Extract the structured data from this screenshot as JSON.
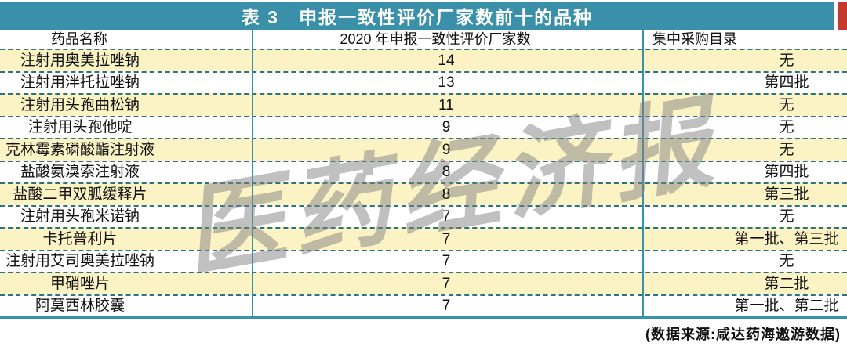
{
  "title": "表 3　申报一致性评价厂家数前十的品种",
  "watermark": "医药经济报",
  "source_note": "(数据来源:咸达药海遨游数据)",
  "colors": {
    "header_bar": "#3A8FA9",
    "row_highlight": "#FBF3C4",
    "dashed_separator": "#2C7380",
    "edge_strip": "#C53A2E"
  },
  "table": {
    "columns": [
      "药品名称",
      "2020 年申报一致性评价厂家数",
      "集中采购目录"
    ],
    "rows": [
      {
        "name": "注射用奥美拉唑钠",
        "count": "14",
        "catalog": "无"
      },
      {
        "name": "注射用泮托拉唑钠",
        "count": "13",
        "catalog": "第四批"
      },
      {
        "name": "注射用头孢曲松钠",
        "count": "11",
        "catalog": "无"
      },
      {
        "name": "注射用头孢他啶",
        "count": "9",
        "catalog": "无"
      },
      {
        "name": "克林霉素磷酸酯注射液",
        "count": "9",
        "catalog": "无"
      },
      {
        "name": "盐酸氨溴索注射液",
        "count": "8",
        "catalog": "第四批"
      },
      {
        "name": "盐酸二甲双胍缓释片",
        "count": "8",
        "catalog": "第三批"
      },
      {
        "name": "注射用头孢米诺钠",
        "count": "7",
        "catalog": "无"
      },
      {
        "name": "卡托普利片",
        "count": "7",
        "catalog": "第一批、第三批"
      },
      {
        "name": "注射用艾司奥美拉唑钠",
        "count": "7",
        "catalog": "无"
      },
      {
        "name": "甲硝唑片",
        "count": "7",
        "catalog": "第二批"
      },
      {
        "name": "阿莫西林胶囊",
        "count": "7",
        "catalog": "第一批、第二批"
      }
    ]
  }
}
